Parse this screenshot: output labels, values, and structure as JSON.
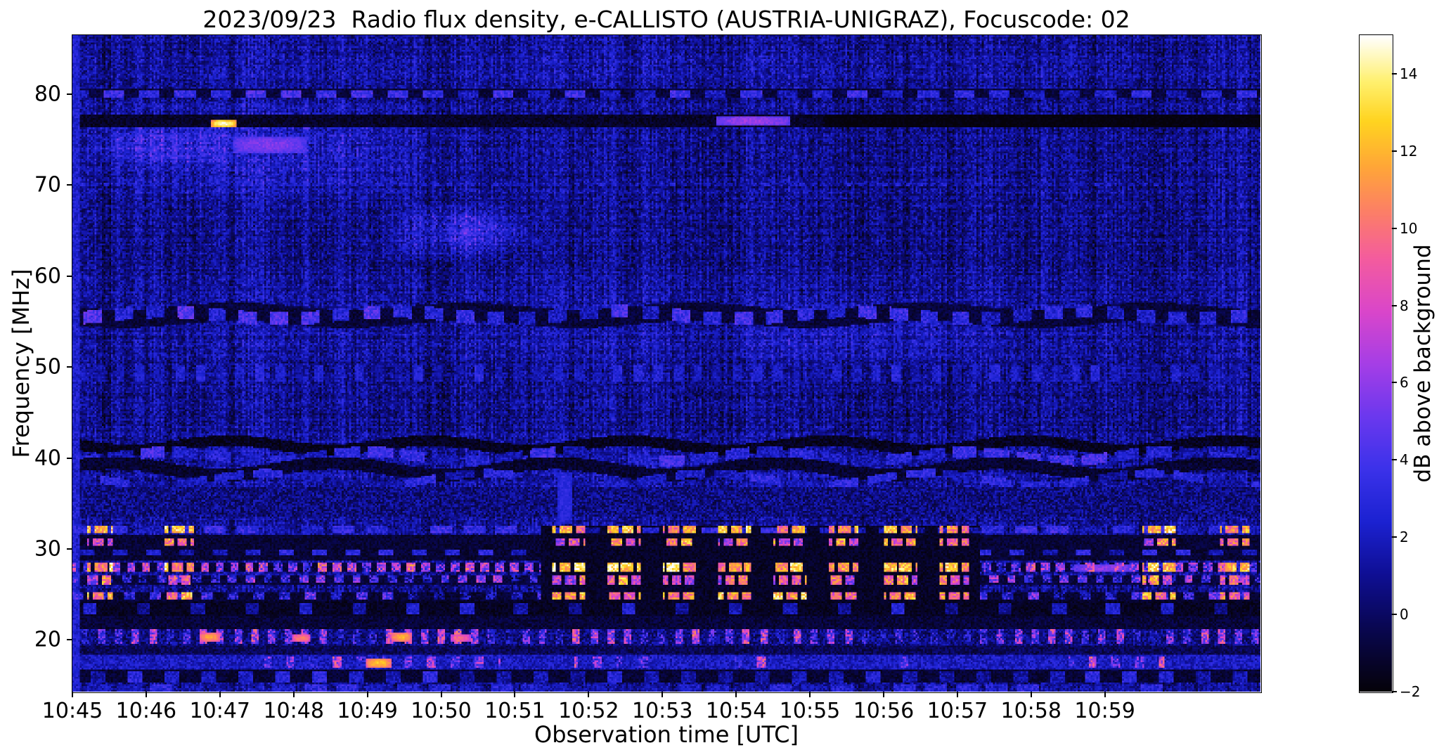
{
  "chart_data": {
    "type": "heatmap",
    "title": "2023/09/23  Radio flux density, e-CALLISTO (AUSTRIA-UNIGRAZ), Focuscode: 02",
    "date": "2023/09/23",
    "station": "AUSTRIA-UNIGRAZ",
    "focuscode": "02",
    "xlabel": "Observation time [UTC]",
    "ylabel": "Frequency [MHz]",
    "colorbar_label": "dB above background",
    "x_ticks": {
      "labels": [
        "10:45",
        "10:46",
        "10:47",
        "10:48",
        "10:49",
        "10:50",
        "10:51",
        "10:52",
        "10:53",
        "10:54",
        "10:55",
        "10:56",
        "10:57",
        "10:58",
        "10:59"
      ],
      "minutes": [
        0,
        1,
        2,
        3,
        4,
        5,
        6,
        7,
        8,
        9,
        10,
        11,
        12,
        13,
        14
      ]
    },
    "time_span_minutes": 16.11,
    "y_ticks": [
      20,
      30,
      40,
      50,
      60,
      70,
      80
    ],
    "freq_range_mhz": [
      14.3,
      86.5
    ],
    "value_range_db": [
      -2,
      15
    ],
    "colorbar_ticks": [
      -2,
      0,
      2,
      4,
      6,
      8,
      10,
      12,
      14
    ],
    "grid": false,
    "legend": false,
    "colormap_stops": [
      [
        0.0,
        5,
        2,
        10
      ],
      [
        0.1,
        9,
        7,
        84
      ],
      [
        0.18,
        15,
        15,
        150
      ],
      [
        0.26,
        28,
        34,
        210
      ],
      [
        0.34,
        60,
        50,
        234
      ],
      [
        0.42,
        108,
        56,
        238
      ],
      [
        0.5,
        166,
        62,
        230
      ],
      [
        0.58,
        218,
        70,
        202
      ],
      [
        0.66,
        244,
        92,
        158
      ],
      [
        0.73,
        252,
        126,
        104
      ],
      [
        0.8,
        255,
        166,
        56
      ],
      [
        0.87,
        255,
        212,
        32
      ],
      [
        0.93,
        255,
        240,
        110
      ],
      [
        1.0,
        255,
        255,
        255
      ]
    ],
    "notable_features": [
      "Quasi-periodic bright broadcast RFI bursts between 24 and 32 MHz, strongest 10:51:30-10:57:00, again near 10:59:30 and at the right edge",
      "Persistent narrowband RFI lines near 77, 80, 55-56, 48-50 and wavy structure 38-42 MHz",
      "Diffuse enhanced blue emission 65-80 MHz during 10:45-10:50 with a bright white point at 77 MHz near 10:47 and magenta patches near 10:47 (74-75 MHz) and 10:54.5 (77 MHz)",
      "Speckled shortwave activity 17-21 MHz throughout, with orange-yellow bursts 10:46-10:50",
      "Dark (below background) band at 77 MHz becoming black after 10:55"
    ],
    "heatmap": {
      "cols": 644,
      "rows": 356,
      "base_db": 0.9,
      "cell_noise": 1.5,
      "col_noise": 0.9,
      "row_noise": 0.45,
      "cluster_intervals": [
        [
          0.2,
          0.55
        ],
        [
          1.25,
          1.65
        ],
        [
          6.5,
          6.95
        ],
        [
          7.25,
          7.7
        ],
        [
          8.0,
          8.45
        ],
        [
          8.75,
          9.2
        ],
        [
          9.5,
          9.95
        ],
        [
          10.25,
          10.65
        ],
        [
          11.0,
          11.45
        ],
        [
          11.75,
          12.15
        ],
        [
          14.5,
          14.95
        ],
        [
          15.55,
          15.95
        ]
      ],
      "clouds": [
        {
          "t": [
            0,
            5.5
          ],
          "f": [
            68,
            80
          ],
          "db": 1.3
        },
        {
          "t": [
            0.2,
            2.3
          ],
          "f": [
            72,
            77
          ],
          "db": 1.6
        },
        {
          "t": [
            4.2,
            6.0
          ],
          "f": [
            61.5,
            68.5
          ],
          "db": 1.9
        },
        {
          "t": [
            5.0,
            6.3
          ],
          "f": [
            63,
            67
          ],
          "db": 1.2
        },
        {
          "t": [
            0,
            16.11
          ],
          "f": [
            50,
            60
          ],
          "db": 0.5
        },
        {
          "t": [
            9.0,
            12.5
          ],
          "f": [
            50,
            58
          ],
          "db": 0.9
        },
        {
          "t": [
            0,
            16.11
          ],
          "f": [
            33,
            43
          ],
          "db": 0.6
        },
        {
          "t": [
            0,
            16.11
          ],
          "f": [
            80,
            86.5
          ],
          "db": 0.4
        }
      ],
      "bands": [
        {
          "f": [
            79.6,
            80.7
          ],
          "db": -0.8,
          "noise": 0.8,
          "mode": "set"
        },
        {
          "f": [
            79.7,
            80.5
          ],
          "db": 2.8,
          "noise": 1.2,
          "dash": [
            0.28,
            0.2
          ],
          "mode": "set"
        },
        {
          "f": [
            76.3,
            77.7
          ],
          "db": -1.3,
          "noise": 0.7,
          "mode": "set"
        },
        {
          "f": [
            76.3,
            77.7
          ],
          "t": [
            10.2,
            16.11
          ],
          "db": -1.9,
          "noise": 0.3,
          "mode": "set"
        },
        {
          "f": [
            69.8,
            70.25
          ],
          "db": 2.0,
          "noise": 0.8,
          "dash": [
            0.06,
            0.1
          ],
          "mode": "max"
        },
        {
          "f": [
            54.7,
            56.7
          ],
          "db": -0.9,
          "noise": 0.8,
          "wave": [
            0.4,
            3.1
          ],
          "mode": "set"
        },
        {
          "f": [
            55.0,
            56.4
          ],
          "db": 3.1,
          "noise": 1.3,
          "dash": [
            0.24,
            0.18
          ],
          "wave": [
            0.4,
            3.1
          ],
          "mode": "set"
        },
        {
          "f": [
            48.4,
            50.2
          ],
          "db": 1.9,
          "noise": 1.0,
          "dash": [
            0.12,
            0.15
          ],
          "mode": "max"
        },
        {
          "f": [
            40.8,
            42.0
          ],
          "db": -1.5,
          "noise": 0.8,
          "wave": [
            0.5,
            2.7
          ],
          "mode": "set"
        },
        {
          "f": [
            39.6,
            40.75
          ],
          "db": 2.7,
          "noise": 1.2,
          "dash": [
            0.34,
            0.1
          ],
          "wave": [
            0.5,
            2.7
          ],
          "mode": "set"
        },
        {
          "f": [
            38.1,
            39.5
          ],
          "db": -1.1,
          "noise": 0.8,
          "wave": [
            0.65,
            3.0
          ],
          "mode": "set"
        },
        {
          "f": [
            37.2,
            38.1
          ],
          "db": 2.1,
          "noise": 1.1,
          "dash": [
            0.4,
            0.12
          ],
          "wave": [
            0.65,
            3.0
          ],
          "mode": "set"
        },
        {
          "f": [
            33.5,
            36.8
          ],
          "db": 0.6,
          "noise": 1.6,
          "mode": "set"
        },
        {
          "f": [
            28.6,
            31.5
          ],
          "db": -1.0,
          "noise": 0.7,
          "mode": "set"
        },
        {
          "f": [
            31.75,
            32.5
          ],
          "db": 2.6,
          "noise": 1.2,
          "dash": [
            0.3,
            0.14
          ],
          "mode": "set"
        },
        {
          "f": [
            29.3,
            29.9
          ],
          "db": 2.2,
          "noise": 1.0,
          "dash": [
            0.2,
            0.25
          ],
          "mode": "max"
        },
        {
          "f": [
            27.4,
            28.5
          ],
          "db": -1.0,
          "noise": 0.6,
          "mode": "set"
        },
        {
          "f": [
            27.5,
            28.45
          ],
          "db": 5.5,
          "noise": 3.2,
          "dash": [
            0.11,
            0.09
          ],
          "mode": "set"
        },
        {
          "f": [
            26.1,
            27.1
          ],
          "db": -0.8,
          "noise": 0.7,
          "mode": "set"
        },
        {
          "f": [
            26.2,
            27.0
          ],
          "db": 3.5,
          "noise": 2.6,
          "dash": [
            0.12,
            0.12
          ],
          "mode": "set"
        },
        {
          "f": [
            24.3,
            25.3
          ],
          "db": -1.0,
          "noise": 0.7,
          "mode": "set"
        },
        {
          "f": [
            24.4,
            25.25
          ],
          "db": 3.0,
          "noise": 2.2,
          "dash": [
            0.15,
            0.2
          ],
          "mode": "set"
        },
        {
          "f": [
            22.7,
            24.2
          ],
          "db": -1.4,
          "noise": 0.6,
          "mode": "set"
        },
        {
          "f": [
            22.8,
            24.1
          ],
          "db": 1.8,
          "noise": 1.0,
          "dash": [
            0.18,
            0.55
          ],
          "mode": "max"
        },
        {
          "f": [
            21.2,
            22.6
          ],
          "db": -0.9,
          "noise": 0.8,
          "mode": "set"
        },
        {
          "f": [
            24.3,
            32.5
          ],
          "t": [
            6.35,
            12.3
          ],
          "db": -1.3,
          "noise": 0.6,
          "mode": "set"
        },
        {
          "f": [
            31.8,
            32.45
          ],
          "t": [
            6.35,
            12.3
          ],
          "db": 2.2,
          "noise": 1.2,
          "dash": [
            0.22,
            0.18
          ],
          "mode": "max"
        },
        {
          "f": [
            31.75,
            32.5
          ],
          "intervals": "cluster",
          "db": 11.5,
          "noise": 2.0,
          "dash": [
            0.16,
            0.05
          ],
          "mode": "set"
        },
        {
          "f": [
            30.3,
            31.15
          ],
          "intervals": "cluster",
          "db": 9.0,
          "noise": 2.4,
          "dash": [
            0.14,
            0.05
          ],
          "mode": "set"
        },
        {
          "f": [
            27.45,
            28.5
          ],
          "intervals": "cluster",
          "db": 12.0,
          "noise": 2.0,
          "dash": [
            0.17,
            0.04
          ],
          "mode": "set"
        },
        {
          "f": [
            26.15,
            27.1
          ],
          "intervals": "cluster",
          "db": 8.5,
          "noise": 2.6,
          "dash": [
            0.13,
            0.05
          ],
          "mode": "set"
        },
        {
          "f": [
            24.35,
            25.3
          ],
          "intervals": "cluster",
          "db": 11.0,
          "noise": 2.2,
          "dash": [
            0.15,
            0.05
          ],
          "mode": "set"
        },
        {
          "f": [
            19.4,
            21.2
          ],
          "db": 0.6,
          "noise": 1.6,
          "mode": "set"
        },
        {
          "f": [
            19.5,
            21.1
          ],
          "db": 4.0,
          "noise": 3.4,
          "dash": [
            0.1,
            0.13
          ],
          "mode": "max"
        },
        {
          "f": [
            18.3,
            19.3
          ],
          "db": -0.3,
          "noise": 1.0,
          "mode": "set"
        },
        {
          "f": [
            16.8,
            18.3
          ],
          "db": 2.0,
          "noise": 1.3,
          "mode": "set"
        },
        {
          "f": [
            16.9,
            18.2
          ],
          "db": 4.5,
          "noise": 3.0,
          "dash": [
            0.12,
            0.2
          ],
          "mode": "max",
          "intervals": [
            [
              2.6,
              5.8
            ],
            [
              6.8,
              8.0
            ],
            [
              8.9,
              9.6
            ],
            [
              11.0,
              11.5
            ],
            [
              13.5,
              14.8
            ]
          ]
        },
        {
          "f": [
            15.3,
            16.7
          ],
          "db": -1.0,
          "noise": 0.7,
          "mode": "set"
        },
        {
          "f": [
            15.4,
            16.6
          ],
          "db": 2.1,
          "noise": 1.1,
          "dash": [
            0.2,
            0.3
          ],
          "mode": "max"
        },
        {
          "f": [
            14.3,
            15.2
          ],
          "db": 1.6,
          "noise": 1.3,
          "dash": [
            0.3,
            0.12
          ],
          "mode": "max"
        },
        {
          "t": [
            0,
            0.1
          ],
          "f": [
            14.3,
            86.5
          ],
          "db": 2.4,
          "noise": 1.0,
          "mode": "max"
        }
      ],
      "spots": [
        {
          "t": [
            1.88,
            2.18
          ],
          "f": [
            76.55,
            77.1
          ],
          "db": 14.6
        },
        {
          "t": [
            8.75,
            9.7
          ],
          "f": [
            76.8,
            77.5
          ],
          "db": 6.3
        },
        {
          "t": [
            2.2,
            3.15
          ],
          "f": [
            73.8,
            75.4
          ],
          "db": 5.6
        },
        {
          "t": [
            1.75,
            1.97
          ],
          "f": [
            20.0,
            20.8
          ],
          "db": 11.5
        },
        {
          "t": [
            3.0,
            3.2
          ],
          "f": [
            19.9,
            20.6
          ],
          "db": 10.5
        },
        {
          "t": [
            4.35,
            4.57
          ],
          "f": [
            19.9,
            20.7
          ],
          "db": 12.0
        },
        {
          "t": [
            5.15,
            5.37
          ],
          "f": [
            20.0,
            20.6
          ],
          "db": 9.5
        },
        {
          "t": [
            4.0,
            4.3
          ],
          "f": [
            17.1,
            17.9
          ],
          "db": 12.5
        },
        {
          "t": [
            13.6,
            14.35
          ],
          "f": [
            27.6,
            28.3
          ],
          "db": 6.0
        },
        {
          "t": [
            6.6,
            6.75
          ],
          "f": [
            33.0,
            38.5
          ],
          "db": 3.2
        }
      ]
    }
  }
}
